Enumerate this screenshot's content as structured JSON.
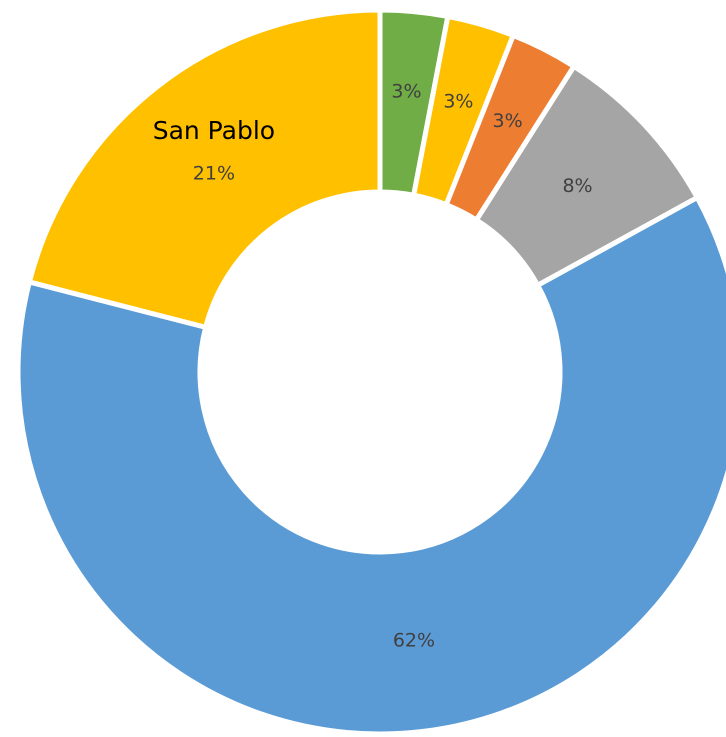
{
  "chart_data": {
    "type": "donut",
    "categories": [
      null,
      null,
      null,
      null,
      null,
      "San Pablo"
    ],
    "values": [
      3,
      3,
      3,
      8,
      62,
      21
    ],
    "value_labels": [
      "3%",
      "3%",
      "3%",
      "8%",
      "62%",
      "21%"
    ],
    "colors": [
      "#70ad47",
      "#ffc000",
      "#ed7d31",
      "#a5a5a5",
      "#5b9bd5",
      "#ffc000"
    ]
  }
}
